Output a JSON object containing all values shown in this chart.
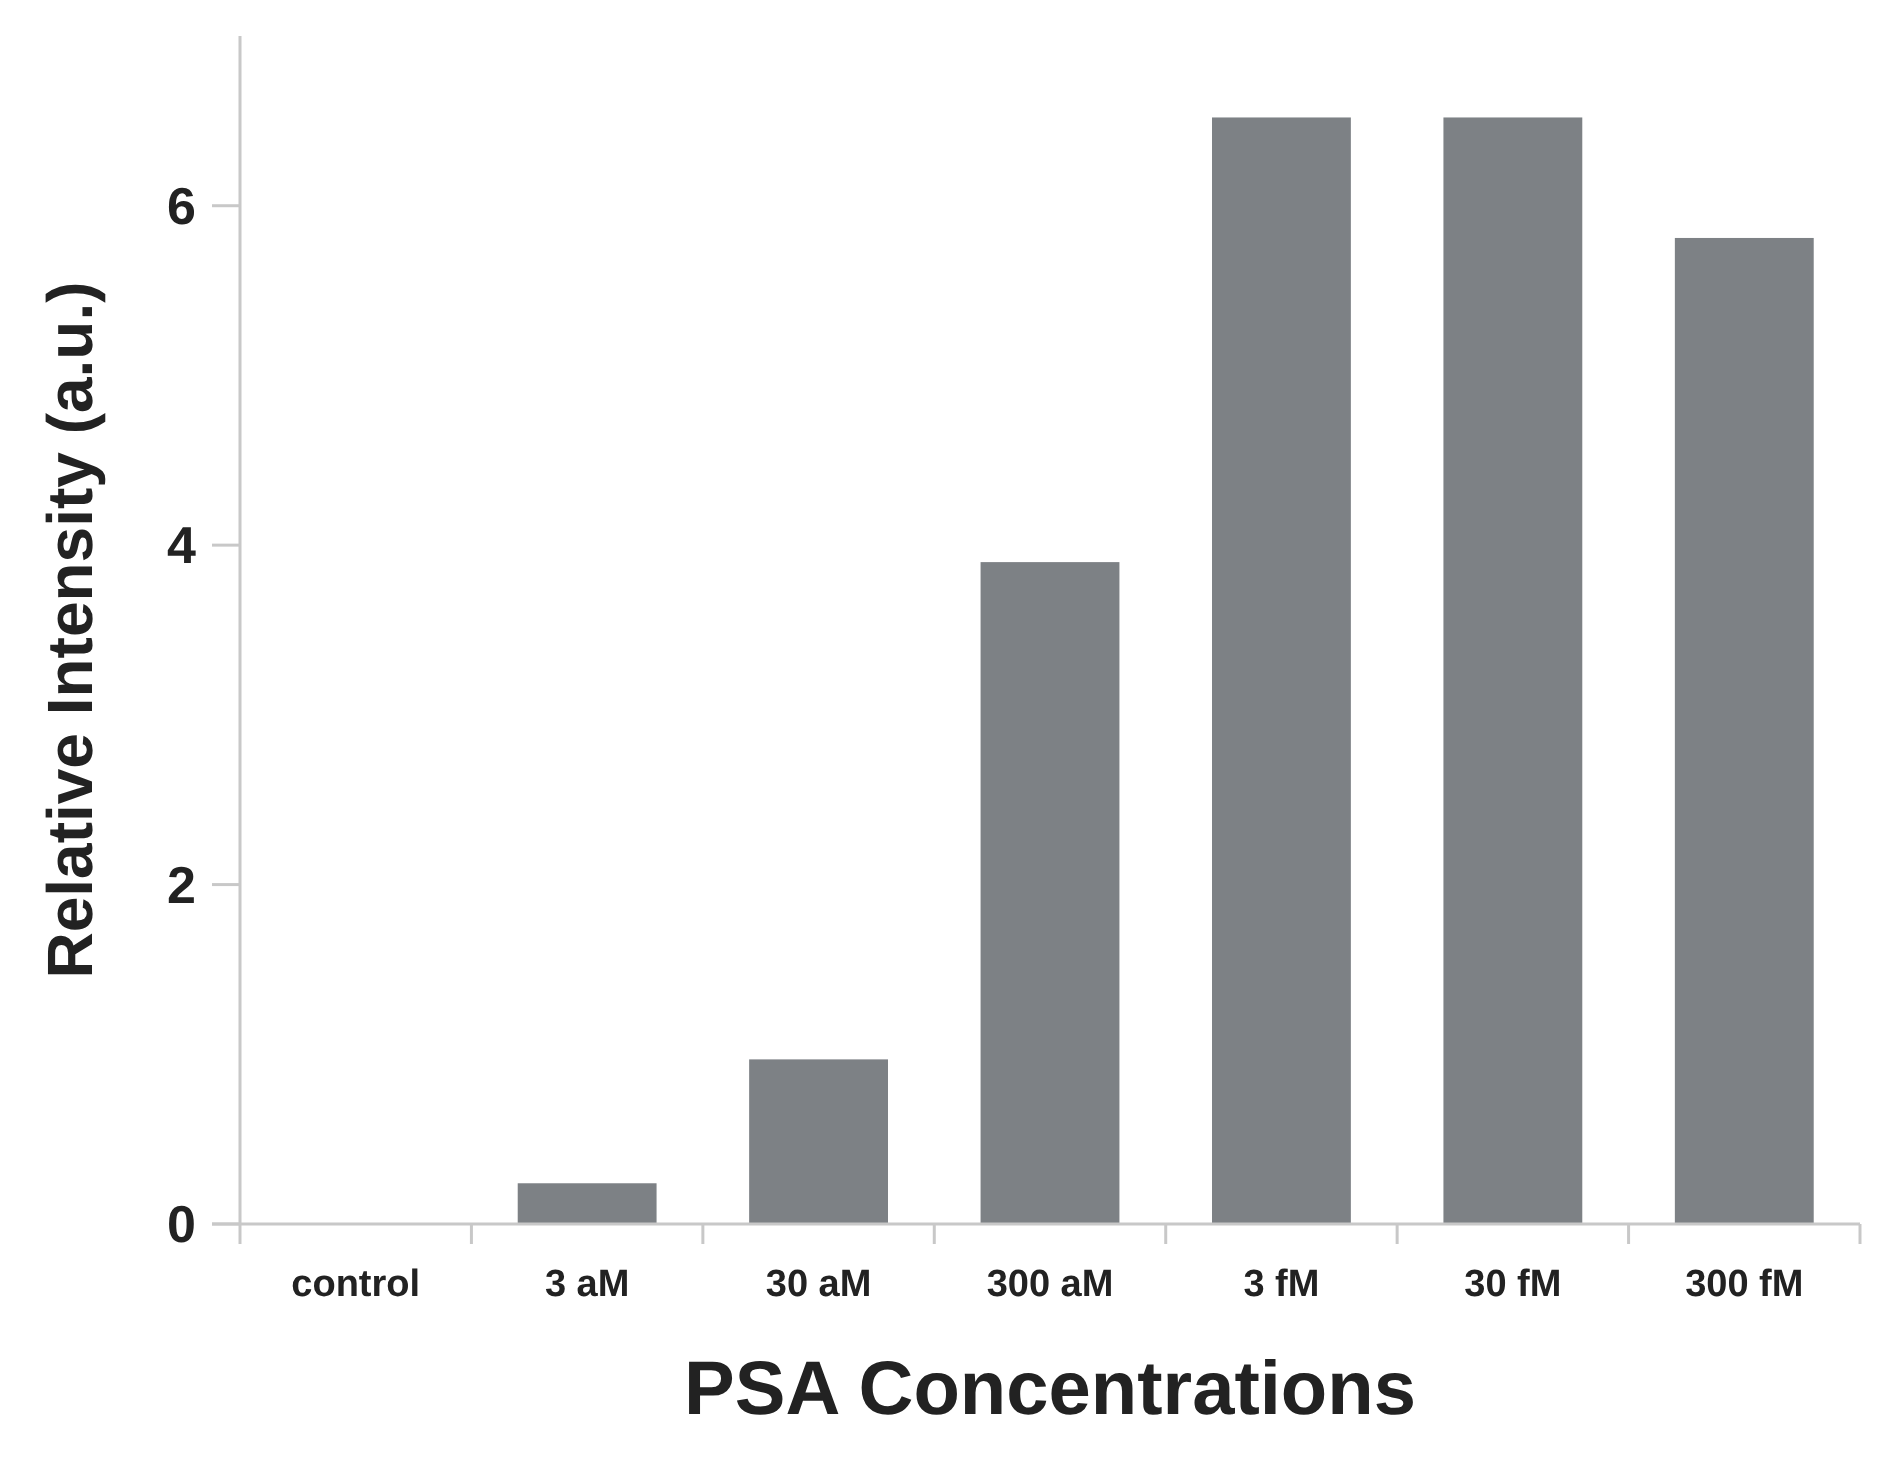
{
  "chart_data": {
    "type": "bar",
    "xlabel": "PSA Concentrations",
    "ylabel": "Relative Intensity (a.u.)",
    "categories": [
      "control",
      "3 aM",
      "30 aM",
      "300 aM",
      "3 fM",
      "30 fM",
      "300 fM"
    ],
    "values": [
      0,
      0.24,
      0.97,
      3.9,
      6.52,
      6.52,
      5.81
    ],
    "color": "#7d8185",
    "ylim": [
      0,
      7
    ],
    "yticks": [
      0,
      2,
      4,
      6
    ],
    "grid": false
  }
}
